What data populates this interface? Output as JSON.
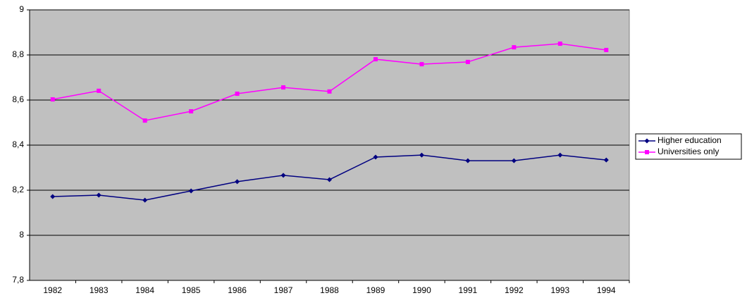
{
  "chart_data": {
    "type": "line",
    "categories": [
      "1982",
      "1983",
      "1984",
      "1985",
      "1986",
      "1987",
      "1988",
      "1989",
      "1990",
      "1991",
      "1992",
      "1993",
      "1994"
    ],
    "series": [
      {
        "name": "Higher education",
        "color": "#000080",
        "marker": "diamond",
        "values": [
          8.172,
          8.178,
          8.156,
          8.197,
          8.238,
          8.266,
          8.247,
          8.347,
          8.356,
          8.331,
          8.331,
          8.356,
          8.334
        ]
      },
      {
        "name": "Universities only",
        "color": "#ff00ff",
        "marker": "square",
        "values": [
          8.603,
          8.641,
          8.509,
          8.55,
          8.628,
          8.656,
          8.638,
          8.781,
          8.759,
          8.769,
          8.834,
          8.85,
          8.822
        ]
      }
    ],
    "ylim": [
      7.8,
      9
    ],
    "yticks": [
      {
        "value": 7.8,
        "label": "7,8"
      },
      8,
      {
        "value": 8.2,
        "label": "8,2"
      },
      {
        "value": 8.4,
        "label": "8,4"
      },
      {
        "value": 8.6,
        "label": "8,6"
      },
      {
        "value": 8.8,
        "label": "8,8"
      },
      9
    ],
    "grid": true,
    "legend": "right",
    "plot_background": "#c0c0c0"
  }
}
